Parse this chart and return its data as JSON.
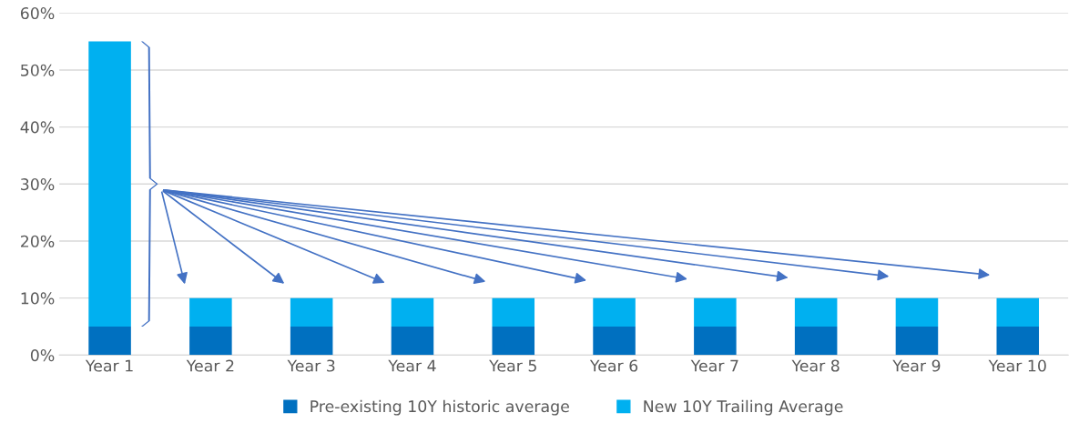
{
  "chart_data": {
    "type": "bar",
    "stacked": true,
    "categories": [
      "Year 1",
      "Year 2",
      "Year 3",
      "Year 4",
      "Year 5",
      "Year 6",
      "Year 7",
      "Year 8",
      "Year 9",
      "Year 10"
    ],
    "series": [
      {
        "name": "Pre-existing 10Y historic average",
        "color": "#0070c0",
        "values": [
          5,
          5,
          5,
          5,
          5,
          5,
          5,
          5,
          5,
          5
        ]
      },
      {
        "name": "New 10Y Trailing Average",
        "color": "#00b0f0",
        "values": [
          50,
          5,
          5,
          5,
          5,
          5,
          5,
          5,
          5,
          5
        ]
      }
    ],
    "ylim": [
      0,
      60
    ],
    "yticks": [
      {
        "value": 0,
        "label": "0%"
      },
      {
        "value": 10,
        "label": "10%"
      },
      {
        "value": 20,
        "label": "20%"
      },
      {
        "value": 30,
        "label": "30%"
      },
      {
        "value": 40,
        "label": "40%"
      },
      {
        "value": 50,
        "label": "50%"
      },
      {
        "value": 60,
        "label": "60%"
      }
    ],
    "grid": "y",
    "legend": "bottom"
  }
}
